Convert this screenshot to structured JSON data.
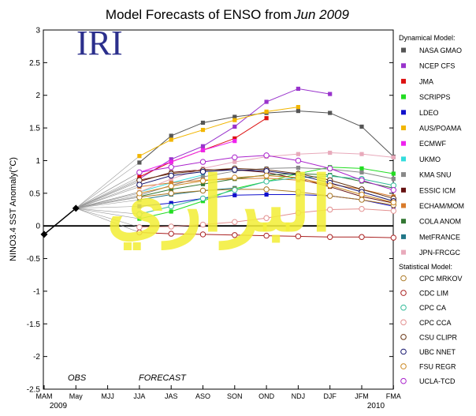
{
  "title": "Model Forecasts of ENSO from",
  "title_italic": "Jun 2009",
  "logo": "IRI",
  "watermark": "البراري",
  "colors": {
    "zero_line": "#000000",
    "watermark": "#f2ee3a",
    "logo": "#2b2f8c"
  },
  "chart_data": {
    "type": "line",
    "ylabel": "NINO3.4 SST Anomaly(°C)",
    "categories": [
      "MAM",
      "May",
      "MJJ",
      "JJA",
      "JAS",
      "ASO",
      "SON",
      "OND",
      "NDJ",
      "DJF",
      "JFM",
      "FMA"
    ],
    "year_labels": [
      {
        "label": "2009",
        "at": "MAM"
      },
      {
        "label": "2010",
        "at": "JFM"
      }
    ],
    "yticks": [
      3,
      2.5,
      2,
      1.5,
      1,
      0.5,
      0,
      -0.5,
      -1,
      -1.5,
      -2,
      -2.5
    ],
    "ylim": [
      -2.5,
      3
    ],
    "annotations": [
      "OBS",
      "FORECAST"
    ],
    "legend_placement": "right",
    "legend_headers": [
      "Dynamical Model:",
      "Statistical Model:"
    ],
    "observed": {
      "x": [
        "MAM",
        "May"
      ],
      "y": [
        -0.13,
        0.27
      ]
    },
    "series": [
      {
        "name": "NASA GMAO",
        "group": "dynamical",
        "color": "#555555",
        "marker": "filled",
        "values": [
          null,
          null,
          null,
          0.97,
          1.38,
          1.58,
          1.67,
          1.73,
          1.76,
          1.73,
          1.52,
          1.06
        ]
      },
      {
        "name": "NCEP CFS",
        "group": "dynamical",
        "color": "#9933cc",
        "marker": "filled",
        "values": [
          null,
          null,
          null,
          0.72,
          1.02,
          1.22,
          1.52,
          1.9,
          2.1,
          2.02,
          null,
          null
        ]
      },
      {
        "name": "JMA",
        "group": "dynamical",
        "color": "#dd1111",
        "marker": "filled",
        "values": [
          null,
          null,
          null,
          0.75,
          0.98,
          1.16,
          1.34,
          1.65,
          null,
          null,
          null,
          null
        ]
      },
      {
        "name": "SCRIPPS",
        "group": "dynamical",
        "color": "#22dd22",
        "marker": "filled",
        "values": [
          null,
          null,
          null,
          0.11,
          0.22,
          0.38,
          0.57,
          0.68,
          0.8,
          0.9,
          0.88,
          0.8
        ]
      },
      {
        "name": "LDEO",
        "group": "dynamical",
        "color": "#1111cc",
        "marker": "filled",
        "values": [
          null,
          null,
          null,
          0.3,
          0.35,
          0.42,
          0.47,
          0.48,
          0.48,
          0.46,
          0.4,
          0.3
        ]
      },
      {
        "name": "AUS/POAMA",
        "group": "dynamical",
        "color": "#f2b600",
        "marker": "filled",
        "values": [
          null,
          null,
          null,
          1.07,
          1.32,
          1.47,
          1.62,
          1.75,
          1.82,
          null,
          null,
          null
        ]
      },
      {
        "name": "ECMWF",
        "group": "dynamical",
        "color": "#ee22ee",
        "marker": "filled",
        "values": [
          null,
          null,
          null,
          0.82,
          0.98,
          1.16,
          1.3,
          null,
          null,
          null,
          null,
          null
        ]
      },
      {
        "name": "UKMO",
        "group": "dynamical",
        "color": "#33dddd",
        "marker": "filled",
        "values": [
          null,
          null,
          null,
          0.52,
          0.66,
          0.78,
          null,
          null,
          null,
          null,
          null,
          null
        ]
      },
      {
        "name": "KMA SNU",
        "group": "dynamical",
        "color": "#888888",
        "marker": "filled",
        "values": [
          null,
          null,
          null,
          0.47,
          0.62,
          0.75,
          0.84,
          0.88,
          0.89,
          0.87,
          0.82,
          0.72
        ]
      },
      {
        "name": "ESSIC ICM",
        "group": "dynamical",
        "color": "#661111",
        "marker": "filled",
        "values": [
          null,
          null,
          null,
          0.68,
          0.82,
          0.86,
          0.86,
          0.82,
          0.72,
          0.6,
          0.45,
          0.35
        ]
      },
      {
        "name": "ECHAM/MOM",
        "group": "dynamical",
        "color": "#d97b2b",
        "marker": "filled",
        "values": [
          null,
          null,
          null,
          0.6,
          0.66,
          0.7,
          0.72,
          0.73,
          0.7,
          0.64,
          0.56,
          0.45
        ]
      },
      {
        "name": "COLA ANOM",
        "group": "dynamical",
        "color": "#337733",
        "marker": "filled",
        "values": [
          null,
          null,
          null,
          0.45,
          0.56,
          0.64,
          0.72,
          0.78,
          0.8,
          0.78,
          0.68,
          0.58
        ]
      },
      {
        "name": "MetFRANCE",
        "group": "dynamical",
        "color": "#227788",
        "marker": "filled",
        "values": [
          null,
          null,
          null,
          0.4,
          0.48,
          0.54,
          0.58,
          null,
          null,
          null,
          null,
          null
        ]
      },
      {
        "name": "JPN-FRCGC",
        "group": "dynamical",
        "color": "#e8aabb",
        "marker": "filled",
        "values": [
          null,
          null,
          null,
          0.52,
          0.72,
          0.88,
          0.98,
          1.06,
          1.1,
          1.12,
          1.1,
          1.05
        ]
      },
      {
        "name": "CPC MRKOV",
        "group": "statistical",
        "color": "#aa7722",
        "marker": "open",
        "values": [
          null,
          null,
          null,
          0.44,
          0.5,
          0.54,
          0.56,
          0.56,
          0.52,
          0.46,
          0.4,
          0.32
        ]
      },
      {
        "name": "CDC LIM",
        "group": "statistical",
        "color": "#aa2222",
        "marker": "open",
        "values": [
          null,
          null,
          null,
          -0.1,
          -0.12,
          -0.13,
          -0.14,
          -0.15,
          -0.16,
          -0.17,
          -0.17,
          -0.18
        ]
      },
      {
        "name": "CPC CA",
        "group": "statistical",
        "color": "#33bb99",
        "marker": "open",
        "values": [
          null,
          null,
          null,
          0.18,
          0.3,
          0.42,
          0.55,
          0.68,
          0.74,
          0.76,
          0.72,
          0.62
        ]
      },
      {
        "name": "CPC CCA",
        "group": "statistical",
        "color": "#e39090",
        "marker": "open",
        "values": [
          null,
          null,
          null,
          -0.02,
          -0.01,
          0.02,
          0.06,
          0.12,
          0.2,
          0.25,
          0.26,
          0.23
        ]
      },
      {
        "name": "CSU CLIPR",
        "group": "statistical",
        "color": "#663311",
        "marker": "open",
        "values": [
          null,
          null,
          null,
          0.7,
          0.8,
          0.85,
          0.88,
          0.86,
          0.8,
          0.7,
          0.56,
          0.42
        ]
      },
      {
        "name": "UBC NNET",
        "group": "statistical",
        "color": "#11116b",
        "marker": "open",
        "values": [
          null,
          null,
          null,
          0.63,
          0.77,
          0.83,
          0.86,
          0.84,
          0.78,
          0.66,
          0.52,
          0.38
        ]
      },
      {
        "name": "FSU REGR",
        "group": "statistical",
        "color": "#cc8822",
        "marker": "open",
        "values": [
          null,
          null,
          null,
          0.5,
          0.61,
          0.69,
          0.74,
          0.77,
          0.74,
          0.62,
          0.48,
          0.36
        ]
      },
      {
        "name": "UCLA-TCD",
        "group": "statistical",
        "color": "#aa22cc",
        "marker": "open",
        "values": [
          null,
          null,
          null,
          0.82,
          0.9,
          0.98,
          1.05,
          1.08,
          1.0,
          0.88,
          0.7,
          0.55
        ]
      }
    ]
  }
}
